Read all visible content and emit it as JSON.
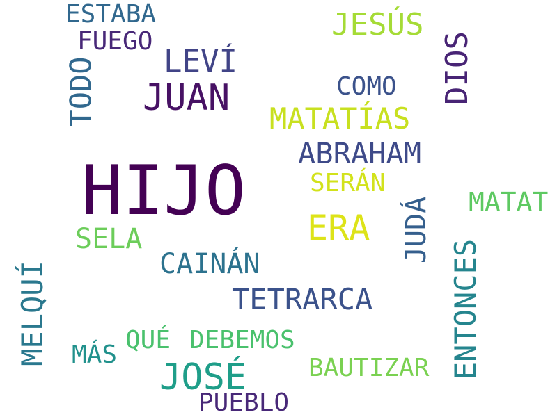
{
  "words": [
    {
      "text": "HIJO",
      "color": "#440154"
    },
    {
      "text": "ERA",
      "color": "#dde318"
    },
    {
      "text": "JOSÉ",
      "color": "#1f9e89"
    },
    {
      "text": "JUAN",
      "color": "#471164"
    },
    {
      "text": "ABRAHAM",
      "color": "#3e4a89"
    },
    {
      "text": "MATATÍAS",
      "color": "#c8e020"
    },
    {
      "text": "JESÚS",
      "color": "#a5db36"
    },
    {
      "text": "LEVÍ",
      "color": "#414487"
    },
    {
      "text": "DIOS",
      "color": "#482475"
    },
    {
      "text": "TODO",
      "color": "#31688e"
    },
    {
      "text": "ESTABA",
      "color": "#31688e"
    },
    {
      "text": "FUEGO",
      "color": "#482878"
    },
    {
      "text": "COMO",
      "color": "#3b528b"
    },
    {
      "text": "SERÁN",
      "color": "#d2e21b"
    },
    {
      "text": "JUDÁ",
      "color": "#355f8d"
    },
    {
      "text": "MATAT",
      "color": "#5ec962"
    },
    {
      "text": "SELA",
      "color": "#6ccd5a"
    },
    {
      "text": "CAINÁN",
      "color": "#2c728e"
    },
    {
      "text": "TETRARCA",
      "color": "#3b528b"
    },
    {
      "text": "MELQUÍ",
      "color": "#2a788e"
    },
    {
      "text": "ENTONCES",
      "color": "#25858e"
    },
    {
      "text": "QUÉ",
      "color": "#4ac16d"
    },
    {
      "text": "DEBEMOS",
      "color": "#4ac16d"
    },
    {
      "text": "MÁS",
      "color": "#21918c"
    },
    {
      "text": "BAUTIZAR",
      "color": "#7ad151"
    },
    {
      "text": "PUEBLO",
      "color": "#482878"
    }
  ]
}
